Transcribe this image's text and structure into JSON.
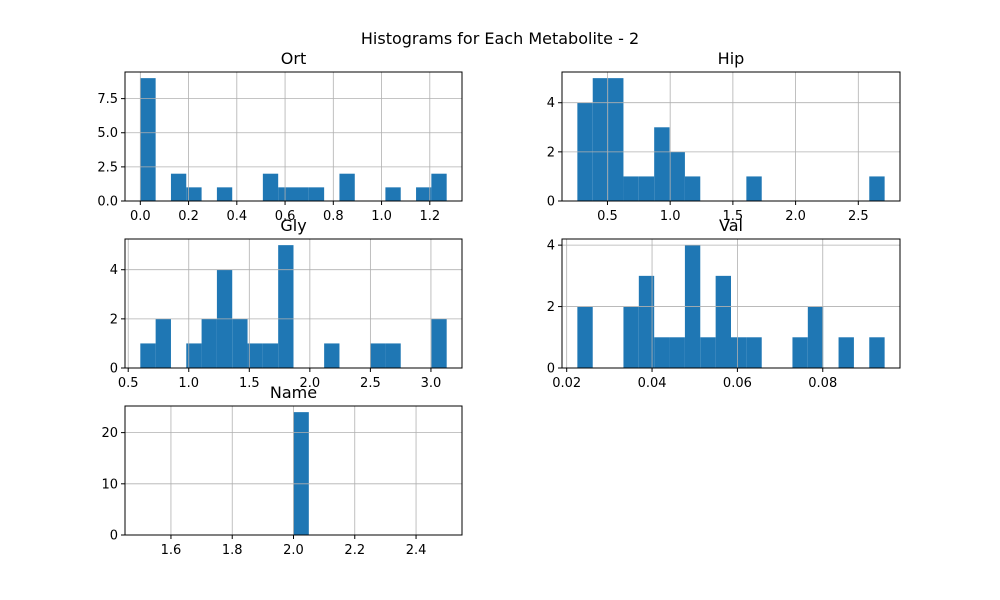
{
  "figure": {
    "title": "Histograms for Each Metabolite - 2",
    "bar_color": "#1f77b4",
    "grid_color": "#b0b0b0",
    "background": "#ffffff"
  },
  "chart_data": [
    {
      "type": "bar",
      "title": "Ort",
      "grid": true,
      "bin_edges": [
        0.0,
        0.0635,
        0.127,
        0.1905,
        0.254,
        0.3175,
        0.381,
        0.4445,
        0.508,
        0.5715,
        0.635,
        0.6985,
        0.762,
        0.8255,
        0.889,
        0.9525,
        1.016,
        1.0795,
        1.143,
        1.2065,
        1.27
      ],
      "counts": [
        9,
        0,
        2,
        1,
        0,
        1,
        0,
        0,
        2,
        1,
        1,
        1,
        0,
        2,
        0,
        0,
        1,
        0,
        1,
        2
      ],
      "xlim": [
        -0.0635,
        1.3335
      ],
      "ylim": [
        0,
        9.45
      ],
      "xticks": [
        0.0,
        0.2,
        0.4,
        0.6,
        0.8,
        1.0,
        1.2
      ],
      "xtick_labels": [
        "0.0",
        "0.2",
        "0.4",
        "0.6",
        "0.8",
        "1.0",
        "1.2"
      ],
      "yticks": [
        0,
        2.5,
        5.0,
        7.5
      ],
      "ytick_labels": [
        "0.0",
        "2.5",
        "5.0",
        "7.5"
      ]
    },
    {
      "type": "bar",
      "title": "Hip",
      "grid": true,
      "bin_edges": [
        0.26,
        0.3825,
        0.505,
        0.6275,
        0.75,
        0.8725,
        0.995,
        1.1175,
        1.24,
        1.3625,
        1.485,
        1.6075,
        1.73,
        1.8525,
        1.975,
        2.0975,
        2.22,
        2.3425,
        2.465,
        2.5875,
        2.71
      ],
      "counts": [
        4,
        5,
        5,
        1,
        1,
        3,
        2,
        1,
        0,
        0,
        0,
        1,
        0,
        0,
        0,
        0,
        0,
        0,
        0,
        1
      ],
      "xlim": [
        0.1375,
        2.8325
      ],
      "ylim": [
        0,
        5.25
      ],
      "xticks": [
        0.5,
        1.0,
        1.5,
        2.0,
        2.5
      ],
      "xtick_labels": [
        "0.5",
        "1.0",
        "1.5",
        "2.0",
        "2.5"
      ],
      "yticks": [
        0,
        2,
        4
      ],
      "ytick_labels": [
        "0",
        "2",
        "4"
      ]
    },
    {
      "type": "bar",
      "title": "Gly",
      "grid": true,
      "bin_edges": [
        0.6,
        0.7265,
        0.853,
        0.9795,
        1.106,
        1.2325,
        1.359,
        1.4855,
        1.612,
        1.7385,
        1.865,
        1.9915,
        2.118,
        2.2445,
        2.371,
        2.4975,
        2.624,
        2.7505,
        2.877,
        3.0035,
        3.13
      ],
      "counts": [
        1,
        2,
        0,
        1,
        2,
        4,
        2,
        1,
        1,
        5,
        0,
        0,
        1,
        0,
        0,
        1,
        1,
        0,
        0,
        2
      ],
      "xlim": [
        0.4735,
        3.2565
      ],
      "ylim": [
        0,
        5.25
      ],
      "xticks": [
        0.5,
        1.0,
        1.5,
        2.0,
        2.5,
        3.0
      ],
      "xtick_labels": [
        "0.5",
        "1.0",
        "1.5",
        "2.0",
        "2.5",
        "3.0"
      ],
      "yticks": [
        0,
        2,
        4
      ],
      "ytick_labels": [
        "0",
        "2",
        "4"
      ]
    },
    {
      "type": "bar",
      "title": "Val",
      "grid": true,
      "bin_edges": [
        0.0225,
        0.0261,
        0.0297,
        0.0333,
        0.0369,
        0.0405,
        0.0441,
        0.0477,
        0.0513,
        0.0549,
        0.0585,
        0.0621,
        0.0657,
        0.0693,
        0.0729,
        0.0765,
        0.0801,
        0.0837,
        0.0873,
        0.0909,
        0.0945
      ],
      "counts": [
        2,
        0,
        0,
        2,
        3,
        1,
        1,
        4,
        1,
        3,
        1,
        1,
        0,
        0,
        1,
        2,
        0,
        1,
        0,
        1
      ],
      "xlim": [
        0.0189,
        0.0981
      ],
      "ylim": [
        0,
        4.2
      ],
      "xticks": [
        0.02,
        0.04,
        0.06,
        0.08
      ],
      "xtick_labels": [
        "0.02",
        "0.04",
        "0.06",
        "0.08"
      ],
      "yticks": [
        0,
        2,
        4
      ],
      "ytick_labels": [
        "0",
        "2",
        "4"
      ]
    },
    {
      "type": "bar",
      "title": "Name",
      "grid": true,
      "bin_edges": [
        1.5,
        1.55,
        1.6,
        1.65,
        1.7,
        1.75,
        1.8,
        1.85,
        1.9,
        1.95,
        2.0,
        2.05,
        2.1,
        2.15,
        2.2,
        2.25,
        2.3,
        2.35,
        2.4,
        2.45,
        2.5
      ],
      "counts": [
        0,
        0,
        0,
        0,
        0,
        0,
        0,
        0,
        0,
        0,
        24,
        0,
        0,
        0,
        0,
        0,
        0,
        0,
        0,
        0
      ],
      "xlim": [
        1.45,
        2.55
      ],
      "ylim": [
        0,
        25.2
      ],
      "xticks": [
        1.6,
        1.8,
        2.0,
        2.2,
        2.4
      ],
      "xtick_labels": [
        "1.6",
        "1.8",
        "2.0",
        "2.2",
        "2.4"
      ],
      "yticks": [
        0,
        10,
        20
      ],
      "ytick_labels": [
        "0",
        "10",
        "20"
      ]
    }
  ]
}
